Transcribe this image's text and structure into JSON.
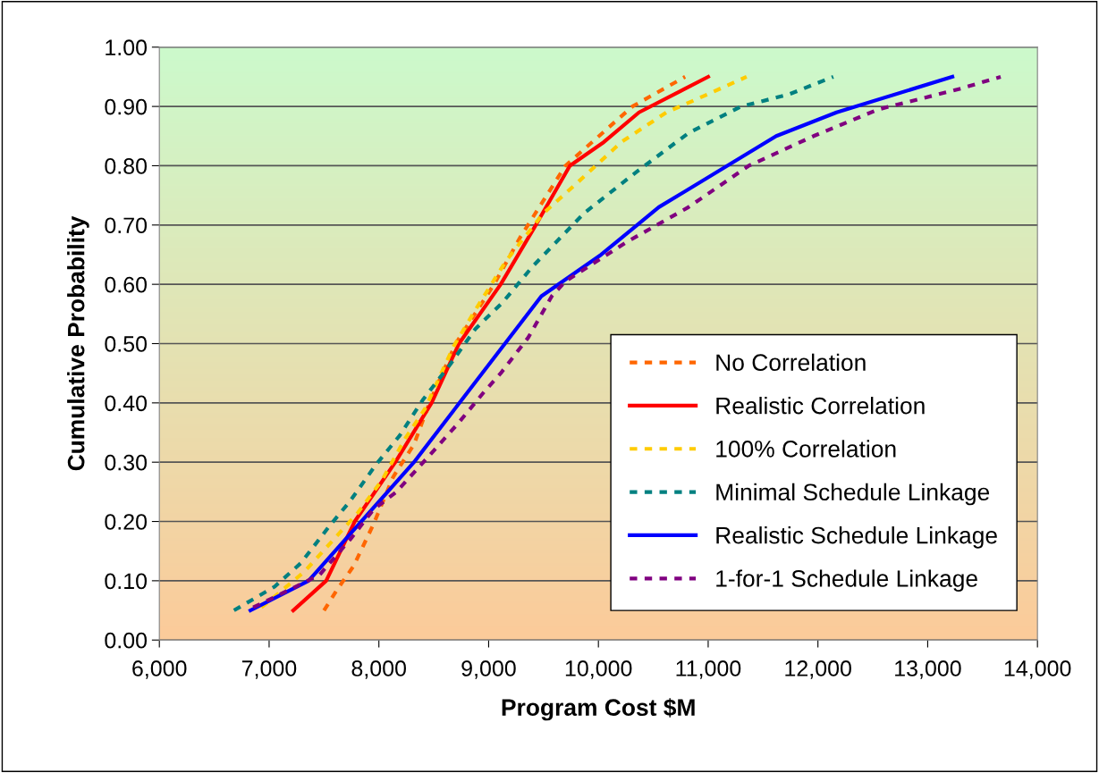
{
  "chart_data": {
    "type": "line",
    "xlabel": "Program Cost $M",
    "ylabel": "Cumulative Probability",
    "xlim": [
      6000,
      14000
    ],
    "ylim": [
      0,
      1
    ],
    "xticks": [
      {
        "value": 6000,
        "label": "6,000"
      },
      {
        "value": 7000,
        "label": "7,000"
      },
      {
        "value": 8000,
        "label": "8,000"
      },
      {
        "value": 9000,
        "label": "9,000"
      },
      {
        "value": 10000,
        "label": "10,000"
      },
      {
        "value": 11000,
        "label": "11,000"
      },
      {
        "value": 12000,
        "label": "12,000"
      },
      {
        "value": 13000,
        "label": "13,000"
      },
      {
        "value": 14000,
        "label": "14,000"
      }
    ],
    "yticks": [
      {
        "value": 0,
        "label": "0.00"
      },
      {
        "value": 0.1,
        "label": "0.10"
      },
      {
        "value": 0.2,
        "label": "0.20"
      },
      {
        "value": 0.3,
        "label": "0.30"
      },
      {
        "value": 0.4,
        "label": "0.40"
      },
      {
        "value": 0.5,
        "label": "0.50"
      },
      {
        "value": 0.6,
        "label": "0.60"
      },
      {
        "value": 0.7,
        "label": "0.70"
      },
      {
        "value": 0.8,
        "label": "0.80"
      },
      {
        "value": 0.9,
        "label": "0.90"
      },
      {
        "value": 1,
        "label": "1.00"
      }
    ],
    "grid": "y",
    "legend": "bottom right",
    "marker": "none",
    "series": [
      {
        "name": "No Correlation",
        "color": "#ff6600",
        "line_style": "dashed",
        "x": [
          7500,
          7620,
          7770,
          7950,
          8130,
          8320,
          8460,
          8700,
          9050,
          9290,
          9700,
          10310,
          10790
        ],
        "values": [
          0.05,
          0.085,
          0.125,
          0.195,
          0.275,
          0.33,
          0.4,
          0.5,
          0.6,
          0.68,
          0.8,
          0.9,
          0.95
        ]
      },
      {
        "name": "Realistic Correlation",
        "color": "#ff0000",
        "line_style": "solid",
        "x": [
          7220,
          7520,
          7780,
          8150,
          8480,
          8730,
          9110,
          9430,
          9740,
          10050,
          10370,
          11000
        ],
        "values": [
          0.05,
          0.1,
          0.2,
          0.3,
          0.4,
          0.5,
          0.6,
          0.7,
          0.8,
          0.84,
          0.89,
          0.95
        ]
      },
      {
        "name": "100% Correlation",
        "color": "#ffcc00",
        "line_style": "dashed",
        "x": [
          6930,
          7320,
          7590,
          7810,
          8030,
          8240,
          8420,
          8680,
          8880,
          9160,
          9500,
          9800,
          10210,
          10620,
          10990,
          11350
        ],
        "values": [
          0.055,
          0.115,
          0.17,
          0.215,
          0.27,
          0.34,
          0.39,
          0.495,
          0.557,
          0.64,
          0.72,
          0.77,
          0.84,
          0.89,
          0.92,
          0.95
        ]
      },
      {
        "name": "Minimal Schedule Linkage",
        "color": "#008080",
        "line_style": "dashed",
        "x": [
          6680,
          7050,
          7290,
          7540,
          7740,
          7970,
          8190,
          8400,
          8650,
          8880,
          9130,
          9400,
          9870,
          10350,
          10820,
          11300,
          11730,
          12140
        ],
        "values": [
          0.05,
          0.09,
          0.13,
          0.19,
          0.235,
          0.295,
          0.345,
          0.405,
          0.465,
          0.525,
          0.57,
          0.63,
          0.72,
          0.79,
          0.855,
          0.9,
          0.92,
          0.95
        ]
      },
      {
        "name": "Realistic Schedule Linkage",
        "color": "#0000ff",
        "line_style": "solid",
        "x": [
          6830,
          7360,
          8320,
          9480,
          10025,
          10550,
          11620,
          12170,
          13225
        ],
        "values": [
          0.05,
          0.1,
          0.3,
          0.58,
          0.65,
          0.73,
          0.85,
          0.89,
          0.95
        ]
      },
      {
        "name": "1-for-1 Schedule Linkage",
        "color": "#800080",
        "line_style": "dashed",
        "x": [
          6855,
          7220,
          7460,
          7740,
          7950,
          8160,
          8430,
          8720,
          8965,
          9110,
          9360,
          9575,
          9700,
          10245,
          10820,
          11370,
          11960,
          12550,
          13300,
          13665
        ],
        "values": [
          0.055,
          0.088,
          0.11,
          0.17,
          0.22,
          0.25,
          0.305,
          0.365,
          0.42,
          0.45,
          0.51,
          0.58,
          0.605,
          0.67,
          0.73,
          0.8,
          0.85,
          0.895,
          0.93,
          0.95
        ]
      }
    ]
  }
}
